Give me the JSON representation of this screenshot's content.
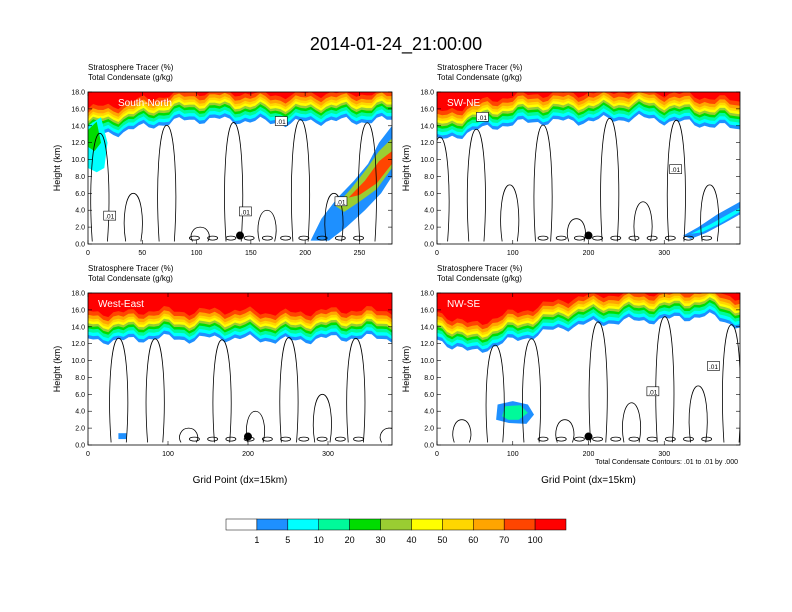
{
  "figure_title": "2014-01-24_21:00:00",
  "colors": {
    "bins": [
      "#ffffff",
      "#1e90ff",
      "#00ffff",
      "#00fa9a",
      "#00dd00",
      "#9acd32",
      "#ffff00",
      "#ffd700",
      "#ffa500",
      "#ff4500",
      "#ff0000"
    ],
    "contour": "#000000"
  },
  "colorbar": {
    "labels": [
      "1",
      "5",
      "10",
      "20",
      "30",
      "40",
      "50",
      "60",
      "70",
      "100"
    ]
  },
  "footnote": "Total Condensate Contours: .01 to .01 by .000",
  "chart_data": [
    {
      "type": "heatmap",
      "name": "South-North",
      "label": "South-North",
      "title_lines": [
        "Stratosphere Tracer   (%)",
        "Total Condensate   (g/kg)"
      ],
      "ylabel": "Height (km)",
      "xlabel": "",
      "xlim": [
        0,
        280
      ],
      "ylim": [
        0,
        18
      ],
      "xticks": [
        0,
        50,
        100,
        150,
        200,
        250
      ],
      "yticks": [
        "0.0",
        "2.0",
        "4.0",
        "6.0",
        "8.0",
        "10.0",
        "12.0",
        "14.0",
        "16.0",
        "18.0"
      ],
      "contour_labels": [
        ".01",
        ".01",
        ".01",
        ".01"
      ],
      "contour_label_pos": [
        [
          20,
          3.3
        ],
        [
          145,
          3.8
        ],
        [
          178,
          14.5
        ],
        [
          233,
          5.0
        ]
      ],
      "marker": [
        140,
        1.0
      ],
      "profile": {
        "base": [
          13.6,
          14.2,
          15.0,
          15.6,
          15.6,
          15.4,
          15.2,
          15.5,
          15.4,
          15.6
        ]
      },
      "plume": "right"
    },
    {
      "type": "heatmap",
      "name": "SW-NE",
      "label": "SW-NE",
      "title_lines": [
        "Stratosphere Tracer   (%)",
        "Total Condensate   (g/kg)"
      ],
      "ylabel": "Height (km)",
      "xlabel": "",
      "xlim": [
        0,
        400
      ],
      "ylim": [
        0,
        18
      ],
      "xticks": [
        0,
        100,
        200,
        300
      ],
      "yticks": [
        "0.0",
        "2.0",
        "4.0",
        "6.0",
        "8.0",
        "10.0",
        "12.0",
        "14.0",
        "16.0",
        "18.0"
      ],
      "contour_labels": [
        ".01",
        ".01"
      ],
      "contour_label_pos": [
        [
          60,
          15.0
        ],
        [
          315,
          8.8
        ]
      ],
      "marker": [
        200,
        1.0
      ],
      "profile": {
        "base": [
          13.0,
          14.2,
          15.0,
          15.4,
          15.4,
          15.6,
          15.8,
          15.4,
          15.0,
          14.5
        ]
      },
      "plume": "lower-right"
    },
    {
      "type": "heatmap",
      "name": "West-East",
      "label": "West-East",
      "title_lines": [
        "Stratosphere Tracer   (%)",
        "Total Condensate   (g/kg)"
      ],
      "ylabel": "Height (km)",
      "xlabel": "Grid Point (dx=15km)",
      "xlim": [
        0,
        380
      ],
      "ylim": [
        0,
        18
      ],
      "xticks": [
        0,
        100,
        200,
        300
      ],
      "yticks": [
        "0.0",
        "2.0",
        "4.0",
        "6.0",
        "8.0",
        "10.0",
        "12.0",
        "14.0",
        "16.0",
        "18.0"
      ],
      "contour_labels": [],
      "contour_label_pos": [],
      "marker": [
        200,
        1.0
      ],
      "profile": {
        "base": [
          13.4,
          13.2,
          13.6,
          13.4,
          13.6,
          13.4,
          13.2,
          13.5,
          13.6,
          13.5
        ]
      },
      "plume": "none"
    },
    {
      "type": "heatmap",
      "name": "NW-SE",
      "label": "NW-SE",
      "title_lines": [
        "Stratosphere Tracer   (%)",
        "Total Condensate   (g/kg)"
      ],
      "ylabel": "Height (km)",
      "xlabel": "Grid Point (dx=15km)",
      "xlim": [
        0,
        400
      ],
      "ylim": [
        0,
        18
      ],
      "xticks": [
        0,
        100,
        200,
        300
      ],
      "yticks": [
        "0.0",
        "2.0",
        "4.0",
        "6.0",
        "8.0",
        "10.0",
        "12.0",
        "14.0",
        "16.0",
        "18.0"
      ],
      "contour_labels": [
        ".01",
        ".01"
      ],
      "contour_label_pos": [
        [
          285,
          6.3
        ],
        [
          365,
          9.3
        ]
      ],
      "marker": [
        200,
        1.0
      ],
      "profile": {
        "base": [
          13.4,
          11.8,
          13.0,
          14.0,
          15.0,
          15.4,
          15.6,
          15.8,
          16.2,
          15.0
        ]
      },
      "plume": "mid-blob"
    }
  ]
}
